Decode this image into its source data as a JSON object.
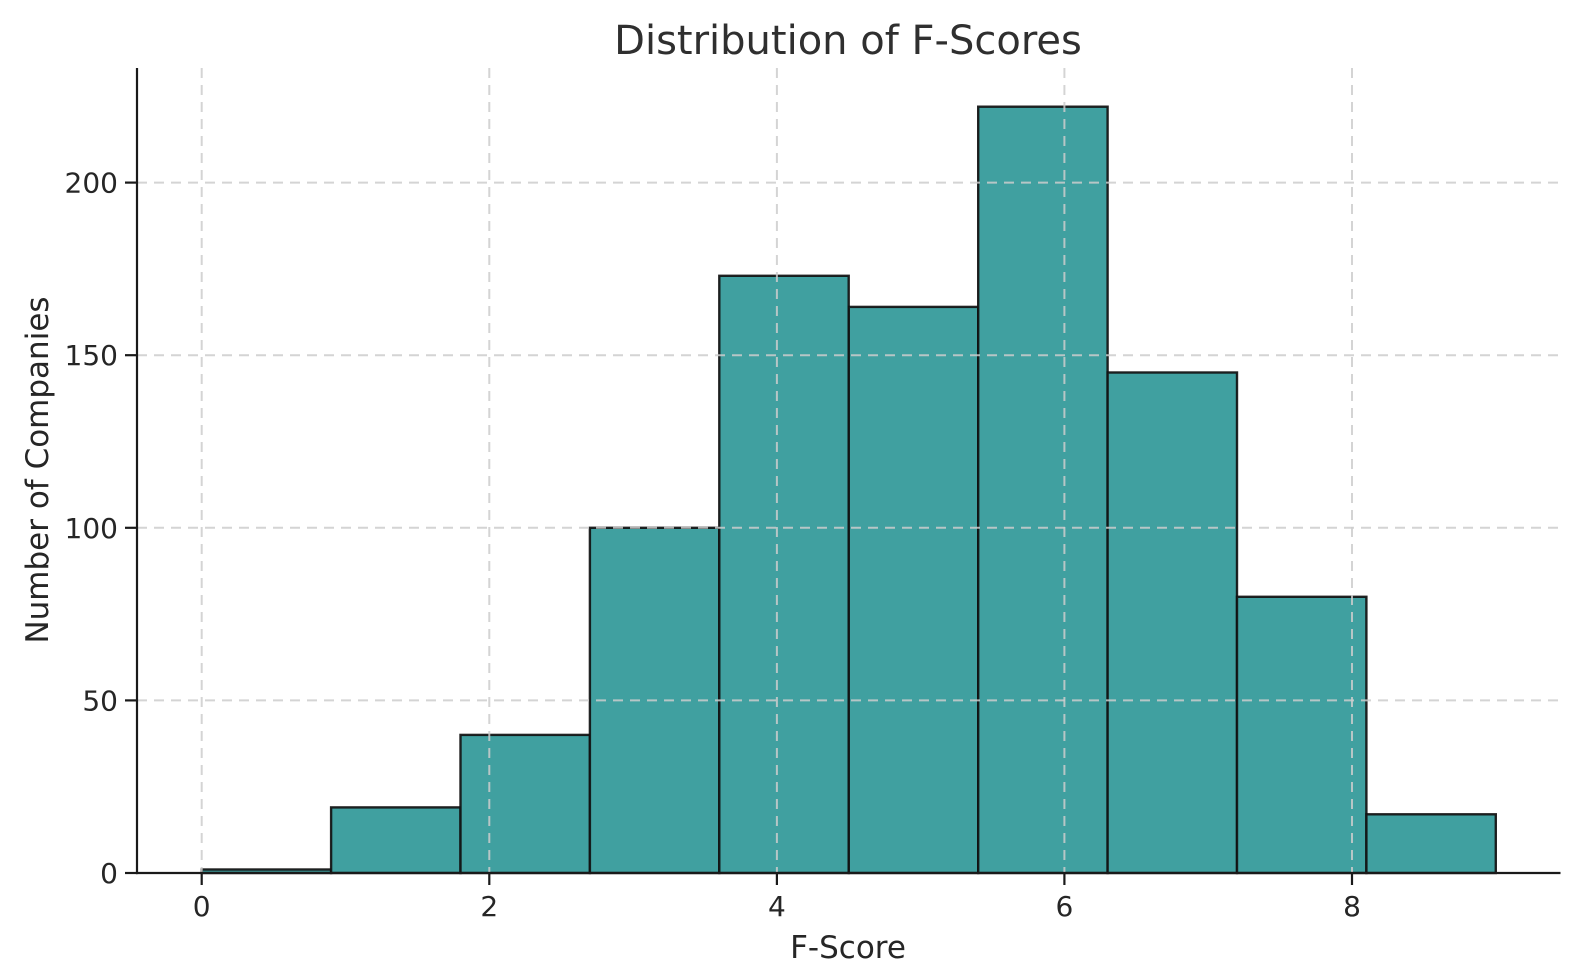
{
  "figure": {
    "background_color": "#ffffff"
  },
  "chart_data": {
    "type": "bar",
    "subtype": "histogram",
    "title": "Distribution of F-Scores",
    "xlabel": "F-Score",
    "ylabel": "Number of Companies",
    "bin_edges": [
      0.0,
      0.9,
      1.8,
      2.7,
      3.6,
      4.5,
      5.4,
      6.3,
      7.2,
      8.1,
      9.0
    ],
    "values": [
      1,
      19,
      40,
      100,
      173,
      164,
      222,
      145,
      80,
      17
    ],
    "x_ticks": [
      0,
      2,
      4,
      6,
      8
    ],
    "y_ticks": [
      0,
      50,
      100,
      150,
      200
    ],
    "xlim": [
      -0.45,
      9.45
    ],
    "ylim": [
      0,
      233.2
    ],
    "grid": {
      "visible": true,
      "style": "dashed",
      "axes": "both",
      "above_bars": true
    },
    "legend": "none",
    "colors": {
      "bar_fill": "#40a0a0",
      "bar_edge": "#111111",
      "grid_line": "#cccccc",
      "spine": "#1a1a1a",
      "title_text": "#2f2f2f",
      "tick_text": "#262626"
    }
  }
}
